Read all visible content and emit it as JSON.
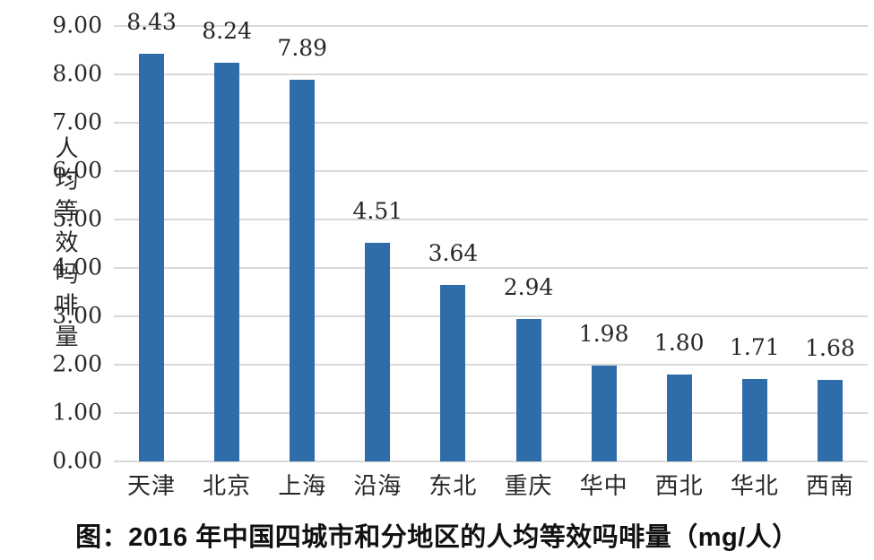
{
  "chart_data": {
    "type": "bar",
    "title": "图：2016 年中国四城市和分地区的人均等效吗啡量（mg/人）",
    "ylabel": "人均等效吗啡量",
    "categories": [
      "天津",
      "北京",
      "上海",
      "沿海",
      "东北",
      "重庆",
      "华中",
      "西北",
      "华北",
      "西南"
    ],
    "values": [
      8.43,
      8.24,
      7.89,
      4.51,
      3.64,
      2.94,
      1.98,
      1.8,
      1.71,
      1.68
    ],
    "value_labels": [
      "8.43",
      "8.24",
      "7.89",
      "4.51",
      "3.64",
      "2.94",
      "1.98",
      "1.80",
      "1.71",
      "1.68"
    ],
    "ylim": [
      0,
      9
    ],
    "ytick_step": 1,
    "ytick_labels": [
      "0.00",
      "1.00",
      "2.00",
      "3.00",
      "4.00",
      "5.00",
      "6.00",
      "7.00",
      "8.00",
      "9.00"
    ],
    "grid": true,
    "legend": "none",
    "bar_color": "#2e6da9",
    "gridline_color": "#d9d9d9"
  }
}
